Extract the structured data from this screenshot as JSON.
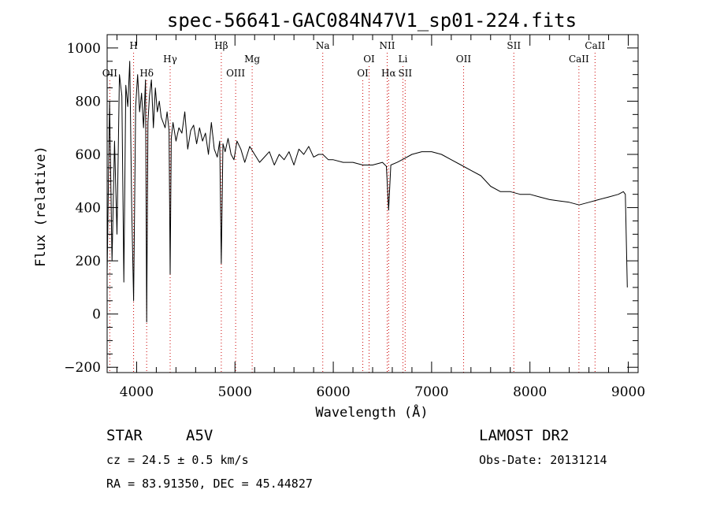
{
  "chart_data": {
    "type": "line",
    "title": "spec-56641-GAC084N47V1_sp01-224.fits",
    "xlabel": "Wavelength (Å)",
    "ylabel": "Flux (relative)",
    "xlim": [
      3700,
      9100
    ],
    "ylim": [
      -220,
      1050
    ],
    "x_ticks": [
      4000,
      5000,
      6000,
      7000,
      8000,
      9000
    ],
    "y_ticks": [
      -200,
      0,
      200,
      400,
      600,
      800,
      1000
    ],
    "x_tick_labels": [
      "4000",
      "5000",
      "6000",
      "7000",
      "8000",
      "9000"
    ],
    "y_tick_labels": [
      "−200",
      "0",
      "200",
      "400",
      "600",
      "800",
      "1000"
    ],
    "grid": false,
    "line_color": "#000000",
    "marker_line_color": "#cc0000",
    "line_markers": [
      {
        "label": "OII",
        "x": 3727,
        "row": 3
      },
      {
        "label": "H",
        "x": 3969,
        "row": 1
      },
      {
        "label": "Hδ",
        "x": 4102,
        "row": 3
      },
      {
        "label": "Hγ",
        "x": 4341,
        "row": 2
      },
      {
        "label": "Hβ",
        "x": 4861,
        "row": 1
      },
      {
        "label": "OIII",
        "x": 5007,
        "row": 3
      },
      {
        "label": "Mg",
        "x": 5175,
        "row": 2
      },
      {
        "label": "Na",
        "x": 5893,
        "row": 1
      },
      {
        "label": "OI",
        "x": 6300,
        "row": 3
      },
      {
        "label": "OI",
        "x": 6364,
        "row": 2
      },
      {
        "label": "NII",
        "x": 6548,
        "row": 1
      },
      {
        "label": "Hα",
        "x": 6563,
        "row": 3
      },
      {
        "label": "Li",
        "x": 6708,
        "row": 2
      },
      {
        "label": "SII",
        "x": 6731,
        "row": 3
      },
      {
        "label": "OII",
        "x": 7325,
        "row": 2
      },
      {
        "label": "SII",
        "x": 7836,
        "row": 1
      },
      {
        "label": "CaII",
        "x": 8498,
        "row": 2
      },
      {
        "label": "CaII",
        "x": 8662,
        "row": 1
      }
    ],
    "series": [
      {
        "x": [
          3700,
          3725,
          3750,
          3775,
          3800,
          3825,
          3850,
          3870,
          3890,
          3910,
          3930,
          3950,
          3969,
          3990,
          4010,
          4030,
          4050,
          4070,
          4090,
          4102,
          4115,
          4130,
          4150,
          4170,
          4190,
          4210,
          4230,
          4250,
          4270,
          4290,
          4310,
          4330,
          4341,
          4352,
          4370,
          4400,
          4430,
          4460,
          4490,
          4520,
          4550,
          4580,
          4610,
          4640,
          4670,
          4700,
          4730,
          4760,
          4790,
          4820,
          4845,
          4861,
          4878,
          4900,
          4930,
          4960,
          4990,
          5020,
          5060,
          5100,
          5150,
          5200,
          5250,
          5300,
          5350,
          5400,
          5450,
          5500,
          5550,
          5600,
          5650,
          5700,
          5750,
          5800,
          5850,
          5893,
          5950,
          6000,
          6100,
          6200,
          6300,
          6400,
          6500,
          6540,
          6563,
          6585,
          6650,
          6700,
          6800,
          6900,
          7000,
          7100,
          7200,
          7300,
          7400,
          7500,
          7600,
          7700,
          7800,
          7900,
          8000,
          8100,
          8200,
          8300,
          8400,
          8500,
          8600,
          8700,
          8800,
          8900,
          8950,
          8970,
          8990
        ],
        "values": [
          150,
          800,
          200,
          650,
          300,
          900,
          820,
          120,
          860,
          780,
          950,
          400,
          50,
          780,
          900,
          760,
          830,
          700,
          880,
          -30,
          720,
          820,
          880,
          700,
          850,
          760,
          800,
          740,
          720,
          700,
          760,
          690,
          150,
          660,
          720,
          650,
          700,
          680,
          760,
          620,
          690,
          710,
          640,
          700,
          650,
          680,
          600,
          720,
          620,
          590,
          650,
          190,
          640,
          610,
          660,
          600,
          580,
          650,
          620,
          570,
          630,
          600,
          570,
          590,
          610,
          560,
          600,
          580,
          610,
          560,
          620,
          600,
          630,
          590,
          600,
          600,
          580,
          580,
          570,
          570,
          560,
          560,
          570,
          555,
          390,
          560,
          570,
          580,
          600,
          610,
          610,
          600,
          580,
          560,
          540,
          520,
          480,
          460,
          460,
          450,
          450,
          440,
          430,
          425,
          420,
          410,
          420,
          430,
          440,
          450,
          460,
          450,
          100
        ]
      }
    ]
  },
  "info": {
    "object_type": "STAR",
    "spectral_class": "A5V",
    "survey": "LAMOST DR2",
    "cz": "cz = 24.5 ± 0.5 km/s",
    "obs_date": "Obs-Date: 20131214",
    "coords": "RA =  83.91350, DEC =  45.44827"
  }
}
